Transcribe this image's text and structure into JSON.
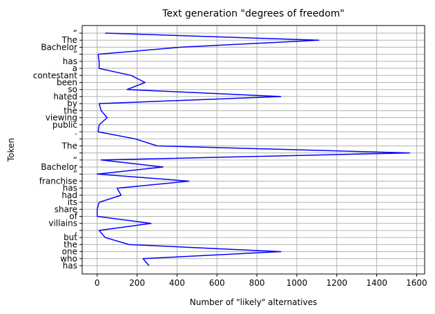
{
  "chart_data": {
    "type": "line",
    "title": "Text generation \"degrees of freedom\"",
    "xlabel": "Number of \"likely\" alternatives",
    "ylabel": "Token",
    "xlim": [
      -75,
      1640
    ],
    "xticks": [
      0,
      200,
      400,
      600,
      800,
      1000,
      1200,
      1400,
      1600
    ],
    "grid": true,
    "line_color": "#0000ff",
    "series": [
      {
        "tokens": [
          "“",
          "The",
          "Bachelor",
          "”",
          "has",
          "a",
          "contestant",
          "been",
          "so",
          "hated",
          "by",
          "the",
          "viewing",
          "public",
          ".",
          "",
          "The",
          "",
          "“",
          "Bachelor",
          "”",
          "franchise",
          "has",
          "had",
          "its",
          "share",
          "of",
          "villains",
          ",",
          "but",
          "the",
          "one",
          "who",
          "has"
        ],
        "values": [
          40,
          1110,
          420,
          5,
          10,
          10,
          170,
          240,
          150,
          920,
          10,
          20,
          50,
          10,
          5,
          190,
          300,
          1565,
          20,
          330,
          0,
          460,
          100,
          120,
          10,
          0,
          0,
          270,
          10,
          40,
          160,
          920,
          230,
          260
        ]
      }
    ]
  }
}
